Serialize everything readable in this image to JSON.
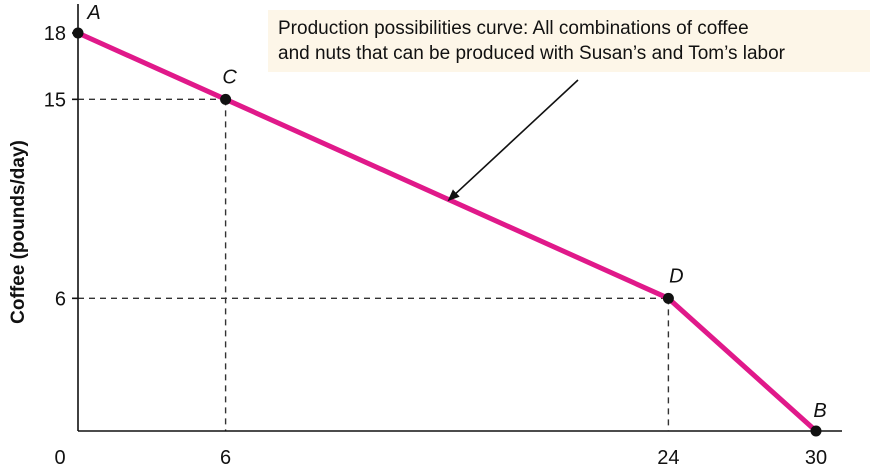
{
  "chart_data": {
    "type": "line",
    "title": "",
    "xlabel": "",
    "ylabel": "Coffee (pounds/day)",
    "xlim": [
      0,
      30
    ],
    "ylim": [
      0,
      18
    ],
    "x_ticks": [
      "0",
      "6",
      "24",
      "30"
    ],
    "y_ticks": [
      "6",
      "15",
      "18"
    ],
    "series": [
      {
        "color": "#e0198a",
        "points": [
          {
            "label": "A",
            "x": 0,
            "y": 18
          },
          {
            "label": "C",
            "x": 6,
            "y": 15
          },
          {
            "label": "D",
            "x": 24,
            "y": 6
          },
          {
            "label": "B",
            "x": 30,
            "y": 0
          }
        ]
      }
    ],
    "reference_lines": [
      {
        "x": 6,
        "y": 15
      },
      {
        "x": 24,
        "y": 6
      }
    ],
    "annotation": {
      "lines": [
        "Production possibilities curve: All combinations of coffee",
        "and nuts that can be produced with Susan’s and Tom’s labor"
      ],
      "box_color": "#fdf6e8",
      "target_x": 15,
      "target_y": 10.5
    },
    "grid": false,
    "legend": "none"
  }
}
